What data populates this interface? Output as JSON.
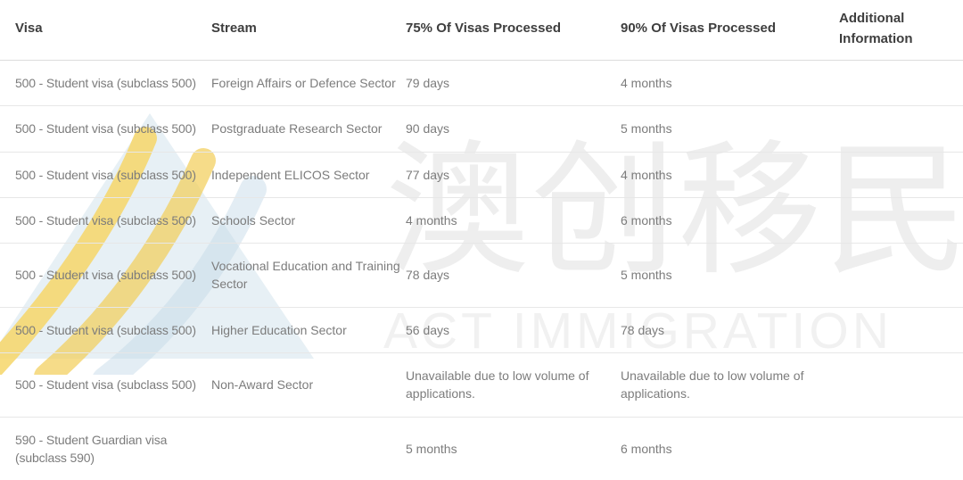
{
  "watermark": {
    "cjk_text": "澳创移民",
    "latin_text": "ACT IMMIGRATION",
    "cjk_color": "#eeeeee",
    "latin_color": "#f1f1f1",
    "logo_triangle_color": "#d9e6ef",
    "logo_swoosh_color": "#f2ce5b"
  },
  "colors": {
    "header_text": "#3e3e3e",
    "cell_text": "#7c7c7c",
    "row_border": "#e7e7e7",
    "background": "#ffffff"
  },
  "table": {
    "columns": [
      "Visa",
      "Stream",
      "75% Of Visas Processed",
      "90% Of Visas Processed",
      "Additional Information"
    ],
    "rows": [
      {
        "visa": "500 - Student visa (subclass 500)",
        "stream": "Foreign Affairs or Defence Sector",
        "p75": "79 days",
        "p90": "4 months",
        "additional": ""
      },
      {
        "visa": "500 - Student visa (subclass 500)",
        "stream": "Postgraduate Research Sector",
        "p75": "90 days",
        "p90": "5 months",
        "additional": ""
      },
      {
        "visa": "500 - Student visa (subclass 500)",
        "stream": "Independent ELICOS Sector",
        "p75": "77 days",
        "p90": "4 months",
        "additional": ""
      },
      {
        "visa": "500 - Student visa (subclass 500)",
        "stream": "Schools Sector",
        "p75": "4 months",
        "p90": "6 months",
        "additional": ""
      },
      {
        "visa": "500 - Student visa (subclass 500)",
        "stream": "Vocational Education and Training Sector",
        "p75": "78 days",
        "p90": "5 months",
        "additional": ""
      },
      {
        "visa": "500 - Student visa (subclass 500)",
        "stream": "Higher Education Sector",
        "p75": "56 days",
        "p90": "78 days",
        "additional": ""
      },
      {
        "visa": "500 - Student visa (subclass 500)",
        "stream": "Non-Award Sector",
        "p75": "Unavailable due to low volume of applications.",
        "p90": "Unavailable due to low volume of applications.",
        "additional": ""
      },
      {
        "visa": "590 - Student Guardian visa (subclass 590)",
        "stream": "",
        "p75": "5 months",
        "p90": "6 months",
        "additional": ""
      }
    ]
  }
}
